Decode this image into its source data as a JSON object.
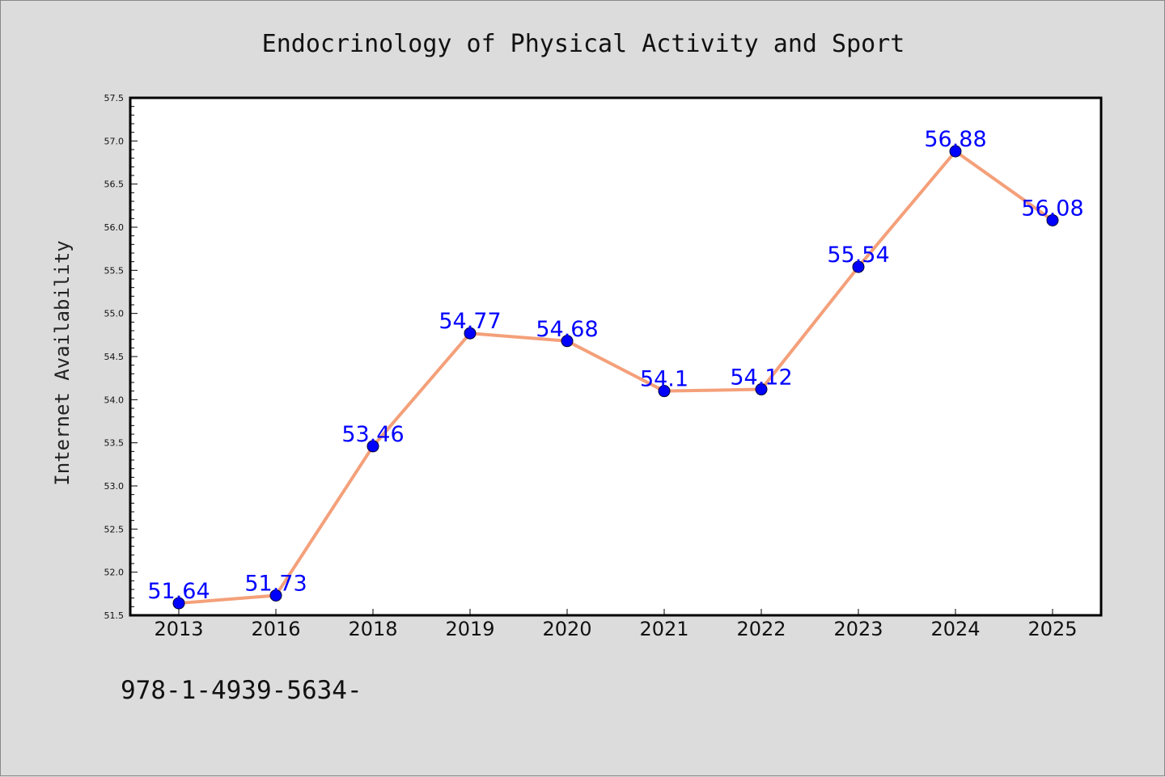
{
  "chart_data": {
    "type": "line",
    "title": "Endocrinology of Physical Activity and Sport",
    "xlabel": "",
    "ylabel": "Internet Availability",
    "categories": [
      "2013",
      "2016",
      "2018",
      "2019",
      "2020",
      "2021",
      "2022",
      "2023",
      "2024",
      "2025"
    ],
    "series": [
      {
        "values": [
          51.64,
          51.73,
          53.46,
          54.77,
          54.68,
          54.1,
          54.12,
          55.54,
          56.88,
          56.08
        ],
        "labels": [
          "51.64",
          "51.73",
          "53.46",
          "54.77",
          "54.68",
          "54.1",
          "54.12",
          "55.54",
          "56.88",
          "56.08"
        ],
        "line_color": "#f4a07a",
        "marker_color": "#0000ff"
      }
    ],
    "ylim": [
      51.5,
      57.5
    ],
    "yticks": [
      "51.5",
      "52.0",
      "52.5",
      "53.0",
      "53.5",
      "54.0",
      "54.5",
      "55.0",
      "55.5",
      "56.0",
      "56.5",
      "57.0",
      "57.5"
    ],
    "grid": false,
    "legend": "none"
  },
  "footer": {
    "text": "978-1-4939-5634-"
  },
  "colors": {
    "background": "#dcdcdc",
    "plot_area": "#ffffff",
    "data_label": "#0000ff"
  }
}
